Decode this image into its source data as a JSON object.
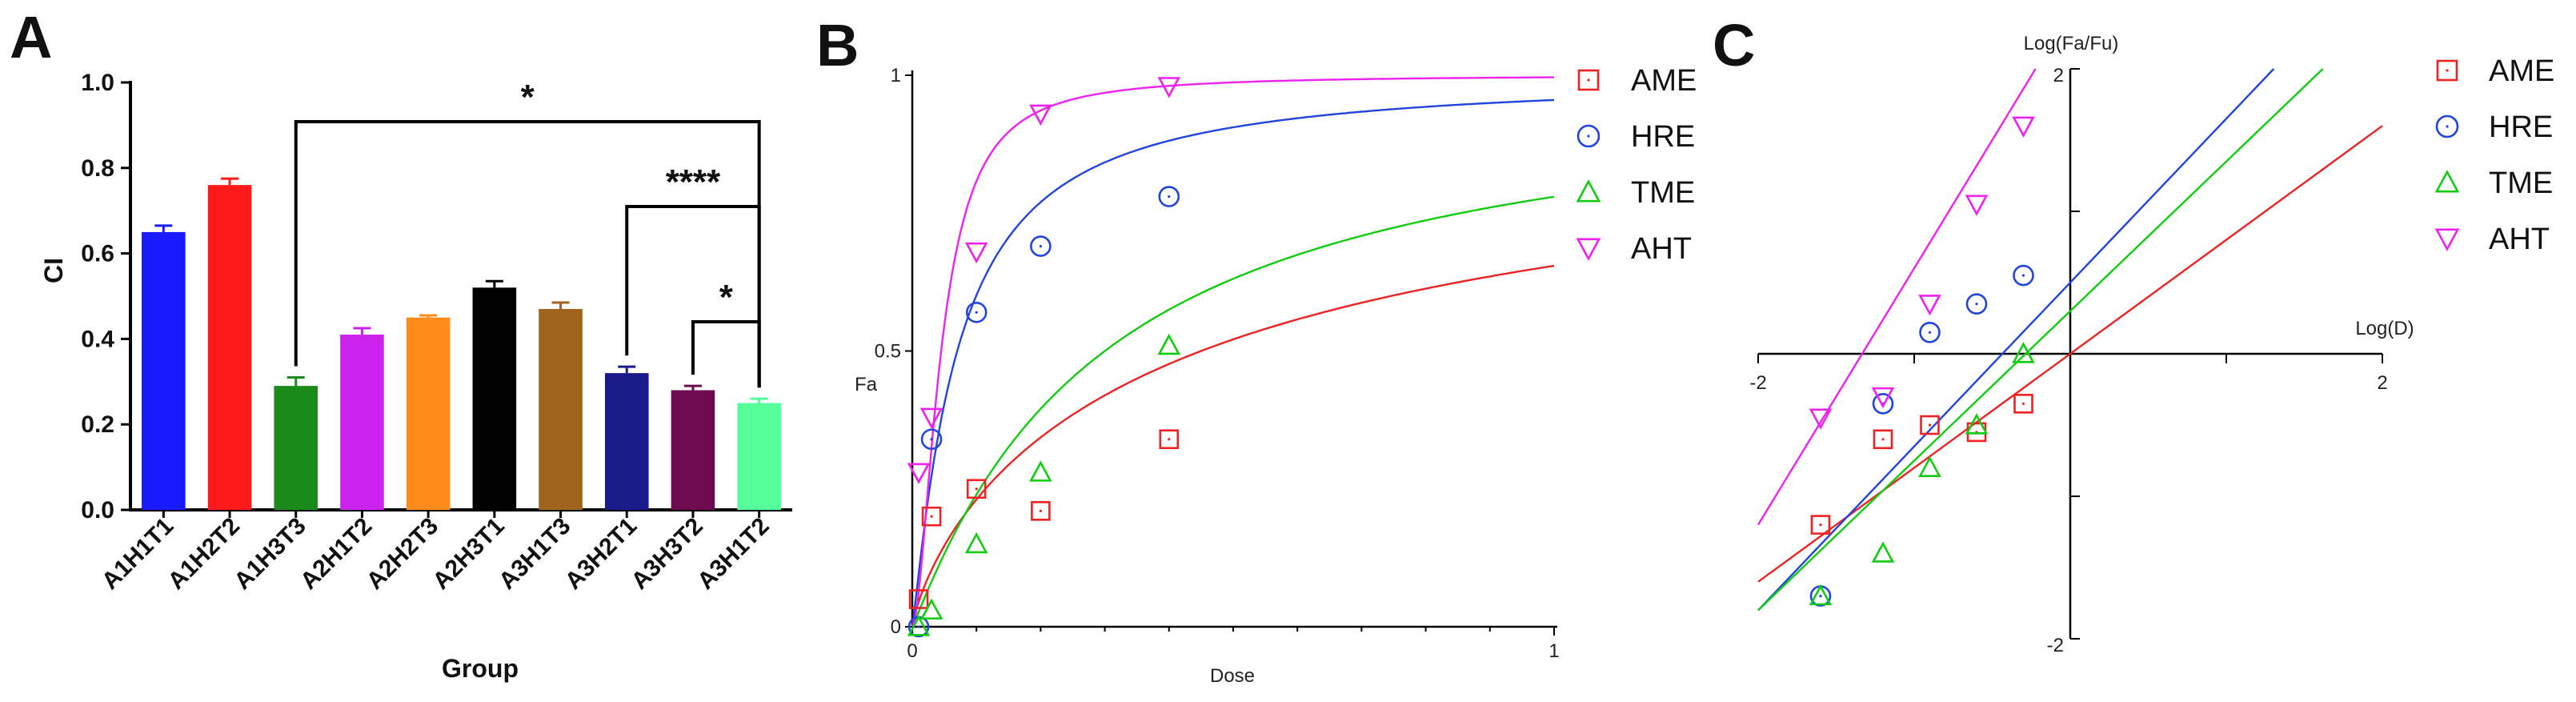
{
  "panel_labels": [
    "A",
    "B",
    "C"
  ],
  "colors": {
    "AME": "#ee2222",
    "HRE": "#2244dd",
    "TME": "#11cc11",
    "AHT": "#ee22ee",
    "axis": "#000000",
    "bar_error": "#000000"
  },
  "chart_data": [
    {
      "panel": "A",
      "type": "bar",
      "xlabel": "Group",
      "ylabel": "CI",
      "ylim": [
        0,
        1.0
      ],
      "yticks": [
        "0.0",
        "0.2",
        "0.4",
        "0.6",
        "0.8",
        "1.0"
      ],
      "categories": [
        "A1H1T1",
        "A1H2T2",
        "A1H3T3",
        "A2H1T2",
        "A2H2T3",
        "A2H3T1",
        "A3H1T3",
        "A3H2T1",
        "A3H3T2",
        "A3H1T2"
      ],
      "values": [
        0.65,
        0.76,
        0.29,
        0.41,
        0.45,
        0.52,
        0.47,
        0.32,
        0.28,
        0.25
      ],
      "errors": [
        0.015,
        0.015,
        0.02,
        0.015,
        0.005,
        0.015,
        0.015,
        0.015,
        0.01,
        0.01
      ],
      "bar_colors": [
        "#1a1aff",
        "#ff1a1a",
        "#1a8a1a",
        "#cc22ee",
        "#ff8c1a",
        "#000000",
        "#a0641e",
        "#1a1a8a",
        "#6e0a50",
        "#55ff99"
      ],
      "significance": [
        {
          "from": "A1H3T3",
          "to": "A3H1T2",
          "label": "*"
        },
        {
          "from": "A3H2T1",
          "to": "A3H1T2",
          "label": "****"
        },
        {
          "from": "A3H3T2",
          "to": "A3H1T2",
          "label": "*"
        }
      ],
      "grid": false
    },
    {
      "panel": "B",
      "type": "scatter",
      "xlabel": "Dose",
      "ylabel": "Fa",
      "xlim": [
        0,
        1
      ],
      "ylim": [
        0,
        1
      ],
      "xticks": [
        "0",
        "1"
      ],
      "yticks": [
        "0",
        "0.5",
        "1"
      ],
      "legend": "top-right",
      "series": [
        {
          "name": "AME",
          "marker": "square",
          "x": [
            0.01,
            0.03,
            0.1,
            0.2,
            0.4
          ],
          "y": [
            0.05,
            0.2,
            0.25,
            0.21,
            0.34
          ],
          "fit": {
            "dm": 0.45,
            "m": 0.8
          }
        },
        {
          "name": "HRE",
          "marker": "circle",
          "x": [
            0.01,
            0.03,
            0.1,
            0.2,
            0.4
          ],
          "y": [
            0.0,
            0.34,
            0.57,
            0.69,
            0.78
          ],
          "fit": {
            "dm": 0.07,
            "m": 1.15
          }
        },
        {
          "name": "TME",
          "marker": "triangle-up",
          "x": [
            0.01,
            0.03,
            0.1,
            0.2,
            0.4
          ],
          "y": [
            0.0,
            0.03,
            0.15,
            0.28,
            0.51
          ],
          "fit": {
            "dm": 0.3,
            "m": 1.05
          }
        },
        {
          "name": "AHT",
          "marker": "triangle-down",
          "x": [
            0.01,
            0.03,
            0.1,
            0.2,
            0.4
          ],
          "y": [
            0.28,
            0.38,
            0.68,
            0.93,
            0.98
          ],
          "fit": {
            "dm": 0.045,
            "m": 1.8
          }
        }
      ],
      "grid": false
    },
    {
      "panel": "C",
      "type": "scatter",
      "xlabel": "Log(D)",
      "ylabel": "Log(Fa/Fu)",
      "xlim": [
        -2,
        2
      ],
      "ylim": [
        -2,
        2
      ],
      "xticks": [
        "-2",
        "2"
      ],
      "yticks": [
        "2",
        "-2"
      ],
      "legend": "top-right",
      "series": [
        {
          "name": "AME",
          "marker": "square",
          "x": [
            -1.6,
            -1.2,
            -0.9,
            -0.6,
            -0.3
          ],
          "y": [
            -1.2,
            -0.6,
            -0.5,
            -0.55,
            -0.35
          ],
          "fit": {
            "slope": 0.8,
            "intercept": 0.0
          }
        },
        {
          "name": "HRE",
          "marker": "circle",
          "x": [
            -1.6,
            -1.2,
            -0.9,
            -0.6,
            -0.3
          ],
          "y": [
            -1.7,
            -0.35,
            0.15,
            0.35,
            0.55
          ],
          "fit": {
            "slope": 1.15,
            "intercept": 0.5
          }
        },
        {
          "name": "TME",
          "marker": "triangle-up",
          "x": [
            -1.6,
            -1.2,
            -0.9,
            -0.6,
            -0.3
          ],
          "y": [
            -1.7,
            -1.4,
            -0.8,
            -0.5,
            0.0
          ],
          "fit": {
            "slope": 1.05,
            "intercept": 0.3
          }
        },
        {
          "name": "AHT",
          "marker": "triangle-down",
          "x": [
            -1.6,
            -1.2,
            -0.9,
            -0.6,
            -0.3
          ],
          "y": [
            -0.45,
            -0.3,
            0.35,
            1.05,
            1.6
          ],
          "fit": {
            "slope": 1.8,
            "intercept": 2.4
          }
        }
      ],
      "grid": false
    }
  ]
}
